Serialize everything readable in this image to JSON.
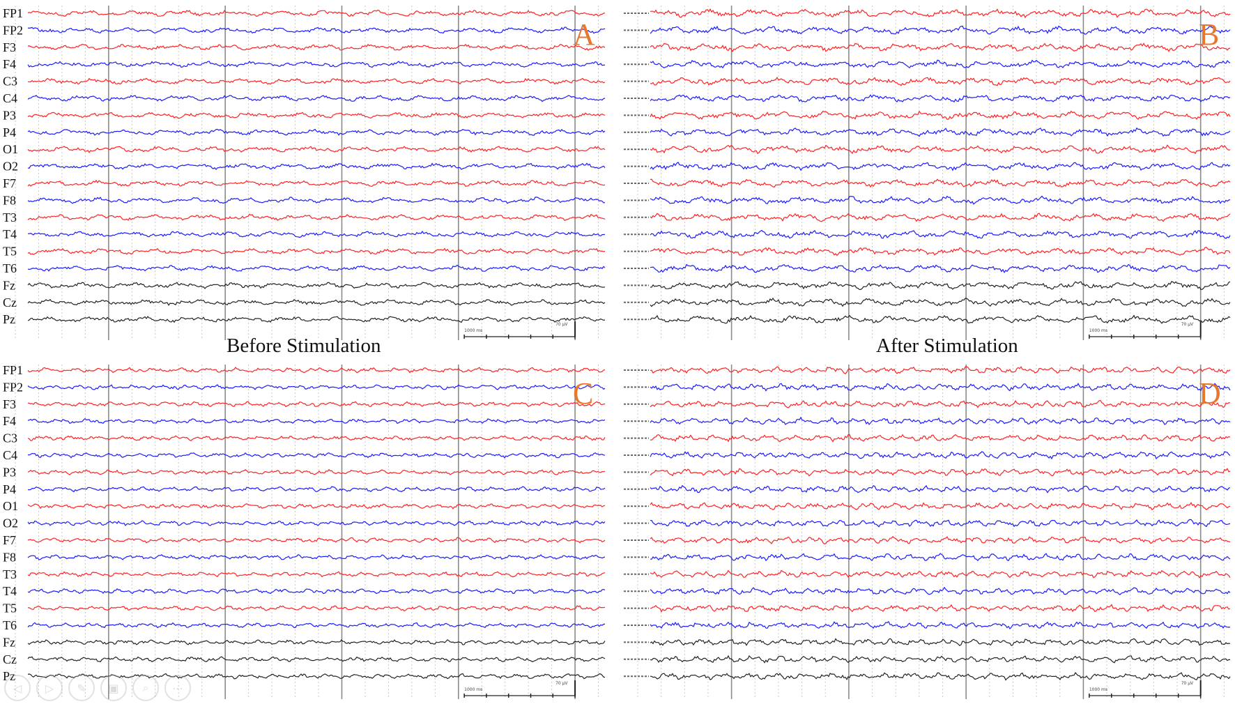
{
  "figure": {
    "titles": {
      "before": "Before Stimulation",
      "after": "After Stimulation"
    },
    "scale": {
      "time_label": "1000 ms",
      "amplitude_label": "70 µV"
    },
    "colors": {
      "red": "#ff2020",
      "blue": "#1a1aff",
      "black": "#222222",
      "panel_letter": "#e8772e",
      "grid_solid": "#8a8a8a",
      "grid_dotted": "#c8c8c8"
    }
  },
  "chart_data": {
    "type": "line",
    "channels": [
      "FP1",
      "FP2",
      "F3",
      "F4",
      "C3",
      "C4",
      "P3",
      "P4",
      "O1",
      "O2",
      "F7",
      "F8",
      "T3",
      "T4",
      "T5",
      "T6",
      "Fz",
      "Cz",
      "Pz"
    ],
    "channel_colors": [
      "red",
      "blue",
      "red",
      "blue",
      "red",
      "blue",
      "red",
      "blue",
      "red",
      "blue",
      "red",
      "blue",
      "red",
      "blue",
      "red",
      "blue",
      "black",
      "black",
      "black"
    ],
    "panels": [
      {
        "letter": "A",
        "condition": "Before Stimulation",
        "labels_readable": true
      },
      {
        "letter": "B",
        "condition": "After Stimulation",
        "labels_readable": false
      },
      {
        "letter": "C",
        "condition": "Before Stimulation",
        "labels_readable": true
      },
      {
        "letter": "D",
        "condition": "After Stimulation",
        "labels_readable": false
      }
    ]
  },
  "slideshow_controls": [
    {
      "name": "previous",
      "glyph": "◁"
    },
    {
      "name": "next",
      "glyph": "▷"
    },
    {
      "name": "pen",
      "glyph": "✎"
    },
    {
      "name": "camera",
      "glyph": "▣"
    },
    {
      "name": "zoom",
      "glyph": "⌕"
    },
    {
      "name": "more",
      "glyph": "⋯"
    }
  ]
}
